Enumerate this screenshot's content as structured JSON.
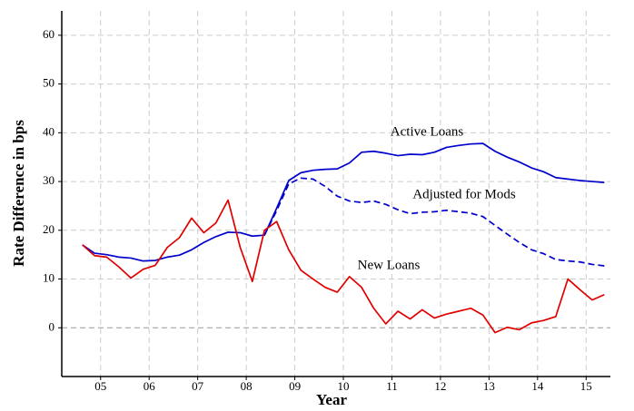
{
  "chart_data": {
    "type": "line",
    "xlabel": "Year",
    "ylabel": "Rate Difference in bps",
    "x": [
      2005.125,
      2005.375,
      2005.625,
      2005.875,
      2006.125,
      2006.375,
      2006.625,
      2006.875,
      2007.125,
      2007.375,
      2007.625,
      2007.875,
      2008.125,
      2008.375,
      2008.625,
      2008.875,
      2009.125,
      2009.375,
      2009.625,
      2009.875,
      2010.125,
      2010.375,
      2010.625,
      2010.875,
      2011.125,
      2011.375,
      2011.625,
      2011.875,
      2012.125,
      2012.375,
      2012.625,
      2012.875,
      2013.125,
      2013.375,
      2013.625,
      2013.875,
      2014.125,
      2014.375,
      2014.625,
      2014.875,
      2015.125,
      2015.375,
      2015.625,
      2015.875
    ],
    "series": [
      {
        "name": "Active Loans",
        "color": "#0000cc",
        "dash": false,
        "values": [
          17,
          15.3,
          15,
          14.5,
          14.3,
          13.7,
          13.8,
          14.5,
          14.9,
          16,
          17.5,
          18.7,
          19.6,
          19.5,
          18.8,
          19,
          24.5,
          30.2,
          31.8,
          32.3,
          32.5,
          32.6,
          33.8,
          36,
          36.2,
          35.8,
          35.3,
          35.6,
          35.5,
          36,
          37,
          37.4,
          37.7,
          37.8,
          36.2,
          35,
          34,
          32.8,
          32,
          30.8,
          30.5,
          30.2,
          30,
          29.8
        ]
      },
      {
        "name": "Adjusted for Mods",
        "color": "#0000cc",
        "dash": true,
        "values": [
          null,
          null,
          null,
          null,
          null,
          null,
          null,
          null,
          null,
          null,
          null,
          null,
          null,
          null,
          null,
          19,
          24,
          29.5,
          30.7,
          30.5,
          29,
          27,
          26,
          25.7,
          26,
          25.3,
          24.2,
          23.4,
          23.7,
          23.8,
          24.1,
          23.8,
          23.5,
          22.8,
          21,
          19.2,
          17.5,
          16,
          15.2,
          14,
          13.7,
          13.5,
          13,
          12.7
        ]
      },
      {
        "name": "New Loans",
        "color": "#e00000",
        "dash": false,
        "values": [
          17,
          14.8,
          14.5,
          12.5,
          10.2,
          12,
          12.8,
          16.5,
          18.5,
          22.5,
          19.5,
          21.5,
          26.2,
          16.5,
          9.5,
          20,
          21.8,
          16,
          11.8,
          10,
          8.3,
          7.3,
          10.5,
          8.3,
          4,
          0.8,
          3.4,
          1.8,
          3.7,
          2,
          2.8,
          3.4,
          4,
          2.6,
          -1,
          0.1,
          -0.4,
          1,
          1.5,
          2.3,
          10,
          7.8,
          5.7,
          6.8
        ]
      }
    ],
    "xlim": [
      2004.7,
      2016
    ],
    "ylim": [
      -10,
      65
    ],
    "xticks": [
      {
        "value": 2005.5,
        "label": "05"
      },
      {
        "value": 2006.5,
        "label": "06"
      },
      {
        "value": 2007.5,
        "label": "07"
      },
      {
        "value": 2008.5,
        "label": "08"
      },
      {
        "value": 2009.5,
        "label": "09"
      },
      {
        "value": 2010.5,
        "label": "10"
      },
      {
        "value": 2011.5,
        "label": "11"
      },
      {
        "value": 2012.5,
        "label": "12"
      },
      {
        "value": 2013.5,
        "label": "13"
      },
      {
        "value": 2014.5,
        "label": "14"
      },
      {
        "value": 2015.5,
        "label": "15"
      }
    ],
    "yticks": [
      0,
      10,
      20,
      30,
      40,
      50,
      60
    ],
    "grid": true
  }
}
